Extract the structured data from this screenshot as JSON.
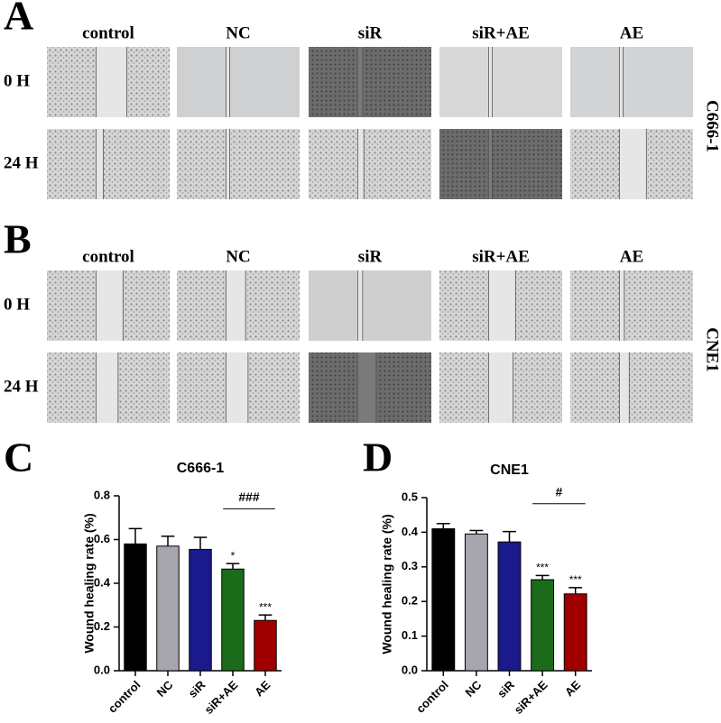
{
  "panels": [
    {
      "letter": "A",
      "columns": [
        "control",
        "NC",
        "siR",
        "siR+AE",
        "AE"
      ],
      "rows": [
        "0 H",
        "24 H"
      ],
      "cell_line": "C666-1"
    },
    {
      "letter": "B",
      "columns": [
        "control",
        "NC",
        "siR",
        "siR+AE",
        "AE"
      ],
      "rows": [
        "0 H",
        "24 H"
      ],
      "cell_line": "CNE1"
    }
  ],
  "chart_data": [
    {
      "type": "bar",
      "letter": "C",
      "title": "C666-1",
      "y_label": "Wound healing rate (%)",
      "categories": [
        "control",
        "NC",
        "siR",
        "siR+AE",
        "AE"
      ],
      "values": [
        0.58,
        0.57,
        0.555,
        0.465,
        0.23
      ],
      "errors": [
        0.07,
        0.045,
        0.055,
        0.025,
        0.025
      ],
      "colors": [
        "#000000",
        "#a7a5ae",
        "#1a1a8c",
        "#1b6b1b",
        "#a00000"
      ],
      "significance": [
        null,
        null,
        null,
        "*",
        "***"
      ],
      "comparison": "###",
      "ylim": [
        0,
        0.8
      ],
      "yticks": [
        {
          "value": 0,
          "label": "0.0"
        },
        0.2,
        0.4,
        0.6,
        0.8
      ]
    },
    {
      "type": "bar",
      "letter": "D",
      "title": "CNE1",
      "y_label": "Wound healing rate (%)",
      "categories": [
        "control",
        "NC",
        "siR",
        "siR+AE",
        "AE"
      ],
      "values": [
        0.41,
        0.395,
        0.372,
        0.263,
        0.222
      ],
      "errors": [
        0.015,
        0.01,
        0.03,
        0.012,
        0.018
      ],
      "colors": [
        "#000000",
        "#a7a5ae",
        "#1a1a8c",
        "#1b6b1b",
        "#a00000"
      ],
      "significance": [
        null,
        null,
        null,
        "***",
        "***"
      ],
      "comparison": "#",
      "ylim": [
        0,
        0.5
      ],
      "yticks": [
        {
          "value": 0,
          "label": "0.0"
        },
        0.1,
        0.2,
        0.3,
        0.4,
        0.5
      ]
    }
  ]
}
